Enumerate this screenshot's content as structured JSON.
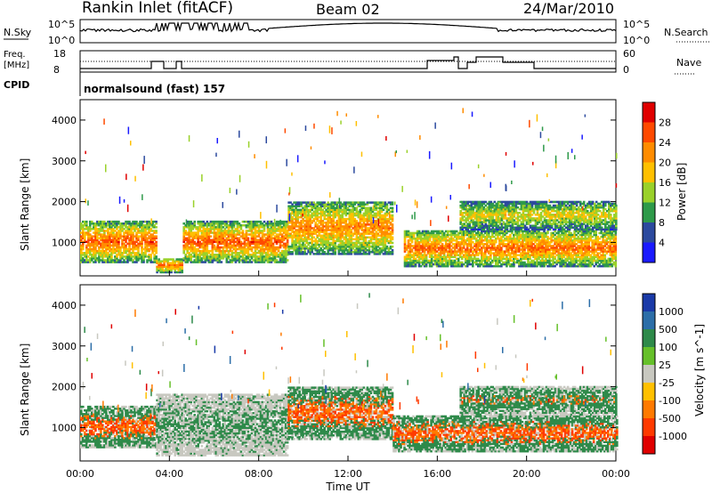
{
  "header": {
    "station": "Rankin Inlet (fitACF)",
    "beam": "Beam 02",
    "date": "24/Mar/2010"
  },
  "top_panels": {
    "nsky_label": "N.Sky",
    "nsky_ticks": [
      "10^5",
      "10^0"
    ],
    "nsearch_label": "N.Search",
    "nsearch_ticks": [
      "10^5",
      "10^0"
    ],
    "freq_label": "Freq.",
    "freq_unit": "[MHz]",
    "freq_ticks": [
      "18",
      "8"
    ],
    "nave_label": "Nave",
    "nave_ticks": [
      "60",
      "0"
    ],
    "cpid_label": "CPID",
    "cpid_value": "normalsound (fast) 157"
  },
  "chart_data": [
    {
      "type": "heatmap",
      "name": "power",
      "ylabel": "Slant Range [km]",
      "xlabel": "",
      "yticks": [
        "1000",
        "2000",
        "3000",
        "4000"
      ],
      "ylim": [
        180,
        4500
      ],
      "xlim": [
        0,
        24
      ],
      "colorbar_label": "Power [dB]",
      "colorbar_ticks": [
        "28",
        "24",
        "20",
        "16",
        "12",
        "8",
        "4"
      ],
      "colorbar_colors": [
        "#e00000",
        "#ff4a00",
        "#ff8c00",
        "#ffc000",
        "#9ad12a",
        "#2e9a4a",
        "#2c4a9e",
        "#1a1aff"
      ],
      "bands": [
        {
          "t0": 0.0,
          "t1": 3.4,
          "r0": 500,
          "r1": 1500,
          "level": 0.85
        },
        {
          "t0": 3.4,
          "t1": 4.6,
          "r0": 250,
          "r1": 600,
          "level": 0.8
        },
        {
          "t0": 4.6,
          "t1": 9.3,
          "r0": 500,
          "r1": 1500,
          "level": 0.85
        },
        {
          "t0": 9.3,
          "t1": 14.0,
          "r0": 700,
          "r1": 2000,
          "level": 0.75
        },
        {
          "t0": 14.5,
          "t1": 24.0,
          "r0": 400,
          "r1": 1300,
          "level": 0.8
        },
        {
          "t0": 17.0,
          "t1": 24.0,
          "r0": 1300,
          "r1": 2000,
          "level": 0.55
        }
      ]
    },
    {
      "type": "heatmap",
      "name": "velocity",
      "ylabel": "Slant Range [km]",
      "xlabel": "Time UT",
      "xticks": [
        "00:00",
        "04:00",
        "08:00",
        "12:00",
        "16:00",
        "20:00",
        "00:00"
      ],
      "yticks": [
        "1000",
        "2000",
        "3000",
        "4000"
      ],
      "ylim": [
        180,
        4500
      ],
      "xlim": [
        0,
        24
      ],
      "colorbar_label": "Velocity [m s^-1]",
      "colorbar_ticks": [
        "1000",
        "500",
        "100",
        "25",
        "-25",
        "-100",
        "-500",
        "-1000"
      ],
      "colorbar_colors": [
        "#1a3aa8",
        "#2c6ea8",
        "#2e8a4a",
        "#66c02a",
        "#c8c8c0",
        "#ffc000",
        "#ff7a00",
        "#ff3a00",
        "#e00000"
      ],
      "bands": [
        {
          "t0": 0.0,
          "t1": 3.4,
          "r0": 500,
          "r1": 1500,
          "level": 0.7
        },
        {
          "t0": 3.4,
          "t1": 9.3,
          "r0": 300,
          "r1": 1800,
          "level": 0.3
        },
        {
          "t0": 9.3,
          "t1": 14.0,
          "r0": 700,
          "r1": 2000,
          "level": 0.7
        },
        {
          "t0": 14.0,
          "t1": 24.0,
          "r0": 400,
          "r1": 1300,
          "level": 0.7
        },
        {
          "t0": 17.0,
          "t1": 24.0,
          "r0": 1300,
          "r1": 2000,
          "level": 0.5
        }
      ]
    }
  ]
}
